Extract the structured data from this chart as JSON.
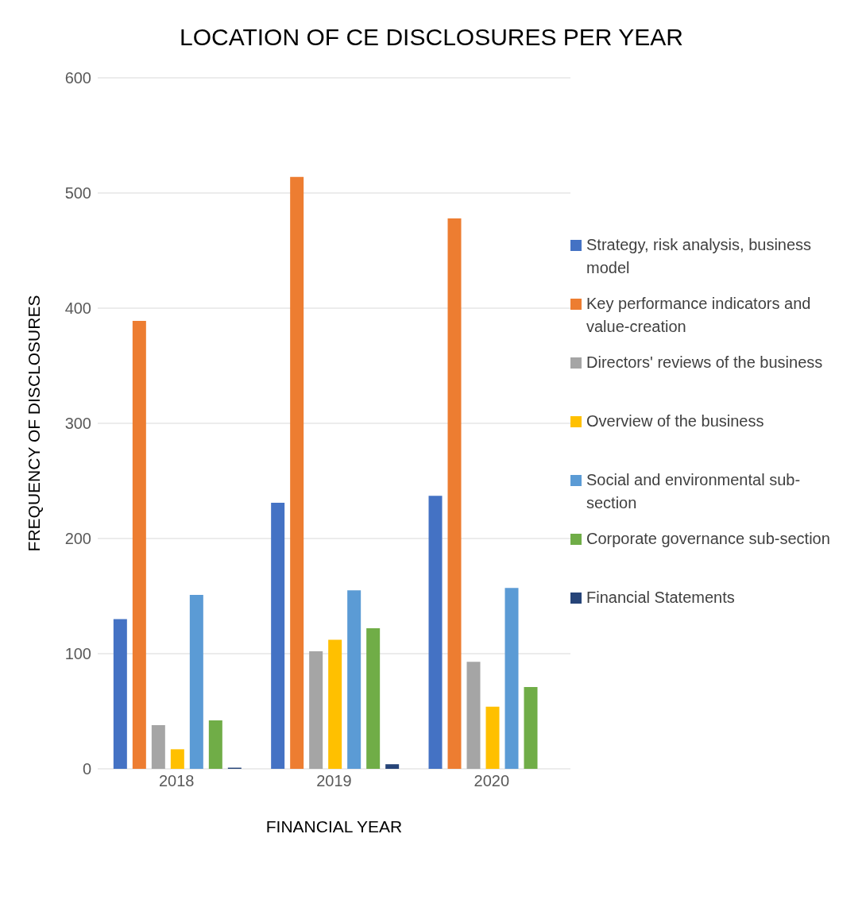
{
  "chart_data": {
    "type": "bar",
    "title": "LOCATION OF CE DISCLOSURES PER YEAR",
    "xlabel": "FINANCIAL YEAR",
    "ylabel": "FREQUENCY OF DISCLOSURES",
    "categories": [
      "2018",
      "2019",
      "2020"
    ],
    "series": [
      {
        "name": "Strategy, risk analysis, business model",
        "color": "#4472c4",
        "values": [
          130,
          231,
          237
        ]
      },
      {
        "name": "Key performance indicators and value-creation",
        "color": "#ed7d31",
        "values": [
          389,
          514,
          478
        ]
      },
      {
        "name": "Directors' reviews of the business",
        "color": "#a5a5a5",
        "values": [
          38,
          102,
          93
        ]
      },
      {
        "name": "Overview of the business",
        "color": "#ffc000",
        "values": [
          17,
          112,
          54
        ]
      },
      {
        "name": "Social and environmental sub-section",
        "color": "#5b9bd5",
        "values": [
          151,
          155,
          157
        ]
      },
      {
        "name": "Corporate governance sub-section",
        "color": "#70ad47",
        "values": [
          42,
          122,
          71
        ]
      },
      {
        "name": "Financial Statements",
        "color": "#264478",
        "values": [
          1,
          4,
          0
        ]
      }
    ],
    "ylim": [
      0,
      600
    ],
    "yticks": [
      0,
      100,
      200,
      300,
      400,
      500,
      600
    ],
    "grid": "y",
    "legend": "right"
  }
}
